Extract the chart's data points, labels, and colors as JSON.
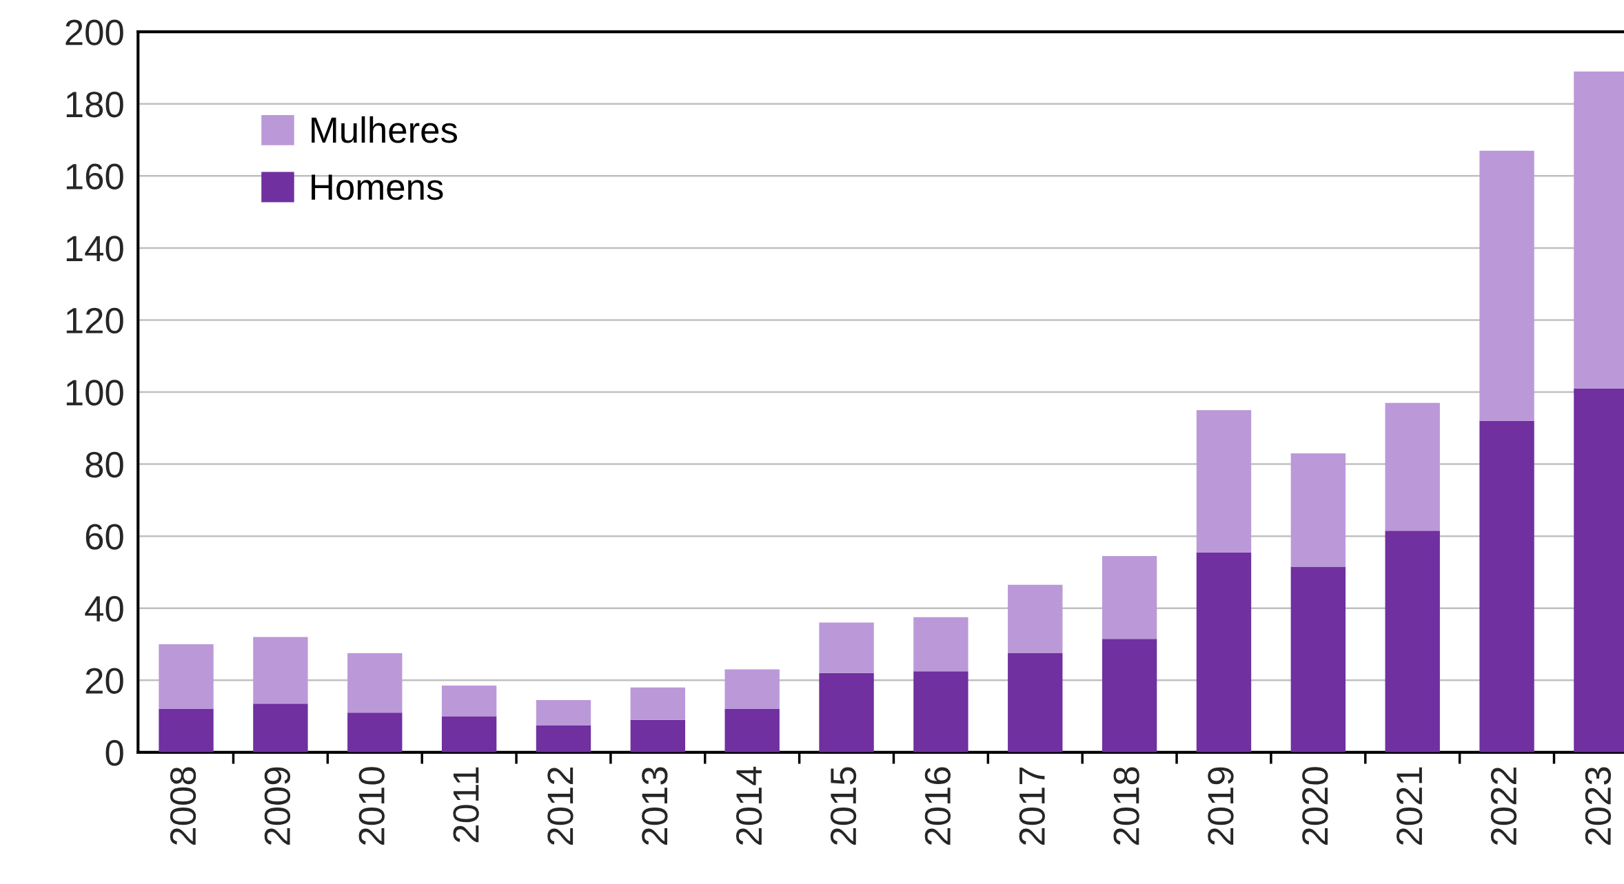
{
  "chart_data": {
    "type": "bar",
    "stacked": true,
    "categories": [
      "2008",
      "2009",
      "2010",
      "2011",
      "2012",
      "2013",
      "2014",
      "2015",
      "2016",
      "2017",
      "2018",
      "2019",
      "2020",
      "2021",
      "2022",
      "2023"
    ],
    "series": [
      {
        "name": "Homens",
        "color": "#7030a0",
        "values": [
          12,
          13.5,
          11,
          10,
          7.5,
          9,
          12,
          22,
          22.5,
          27.5,
          31.5,
          55.5,
          51.5,
          61.5,
          92,
          101
        ]
      },
      {
        "name": "Mulheres",
        "color": "#bb99d8",
        "values": [
          18,
          18.5,
          16.5,
          8.5,
          7,
          9,
          11,
          14,
          15,
          19,
          23,
          39.5,
          31.5,
          35.5,
          75,
          88
        ]
      }
    ],
    "ylim": [
      0,
      200
    ],
    "yticks": [
      0,
      20,
      40,
      60,
      80,
      100,
      120,
      140,
      160,
      180,
      200
    ],
    "grid": "y",
    "legend": "top left"
  }
}
